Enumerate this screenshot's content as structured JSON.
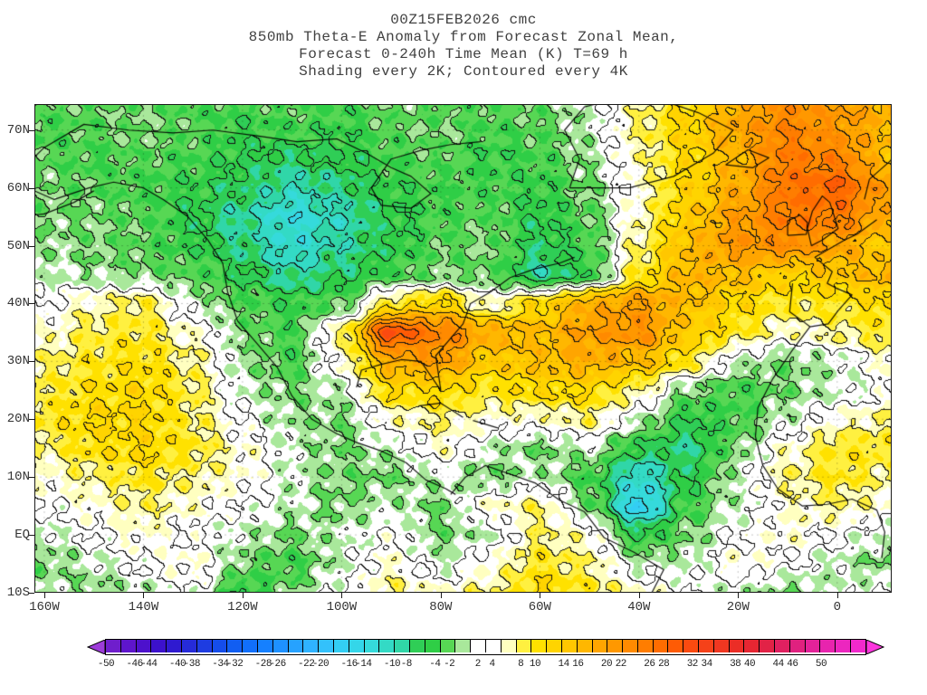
{
  "title": {
    "line1": "00Z15FEB2026 cmc",
    "line2": "850mb Theta-E Anomaly from Forecast Zonal Mean,",
    "line3": "Forecast 0-240h Time Mean (K) T=69 h",
    "line4": "Shading every 2K; Contoured every 4K"
  },
  "axes": {
    "y_ticks": [
      {
        "label": "70N",
        "lat": 70
      },
      {
        "label": "60N",
        "lat": 60
      },
      {
        "label": "50N",
        "lat": 50
      },
      {
        "label": "40N",
        "lat": 40
      },
      {
        "label": "30N",
        "lat": 30
      },
      {
        "label": "20N",
        "lat": 20
      },
      {
        "label": "10N",
        "lat": 10
      },
      {
        "label": "EQ",
        "lat": 0
      },
      {
        "label": "10S",
        "lat": -10
      }
    ],
    "x_ticks": [
      {
        "label": "160W",
        "lon": -160
      },
      {
        "label": "140W",
        "lon": -140
      },
      {
        "label": "120W",
        "lon": -120
      },
      {
        "label": "100W",
        "lon": -100
      },
      {
        "label": "80W",
        "lon": -80
      },
      {
        "label": "60W",
        "lon": -60
      },
      {
        "label": "40W",
        "lon": -40
      },
      {
        "label": "20W",
        "lon": -20
      },
      {
        "label": "0",
        "lon": 0
      }
    ]
  },
  "colorbar": {
    "min": -50,
    "max": 50,
    "step": 2,
    "labels": [
      "-50",
      "-46",
      "-44",
      "-40",
      "-38",
      "-34",
      "-32",
      "-28",
      "-26",
      "-22",
      "-20",
      "-16",
      "-14",
      "-10",
      "-8",
      "-4",
      "-2",
      "2",
      "4",
      "8",
      "10",
      "14",
      "16",
      "20",
      "22",
      "26",
      "28",
      "32",
      "34",
      "38",
      "40",
      "44",
      "46",
      "50"
    ]
  },
  "chart_data": {
    "type": "heatmap",
    "model_run": "00Z15FEB2026 cmc",
    "title": "850mb Theta-E Anomaly from Forecast Zonal Mean, Forecast 0-240h Time Mean (K) T=69 h",
    "shading_note": "Shading every 2K; Contoured every 4K",
    "units": "K",
    "shading_interval_K": 2,
    "contour_interval_K": 4,
    "lon_range": [
      -162,
      11
    ],
    "lat_range": [
      -10,
      74.5
    ],
    "grid_lons": [
      -160,
      -150,
      -140,
      -130,
      -120,
      -110,
      -100,
      -90,
      -80,
      -70,
      -60,
      -50,
      -40,
      -30,
      -20,
      -10,
      0,
      10
    ],
    "grid_lats": [
      75,
      70,
      65,
      60,
      55,
      50,
      45,
      40,
      35,
      30,
      25,
      20,
      15,
      10,
      5,
      0,
      -5,
      -10
    ],
    "values": [
      [
        -5,
        -5,
        -4,
        -6,
        -6,
        -5,
        -6,
        -4,
        -6,
        -5,
        -4,
        -2,
        3,
        8,
        14,
        18,
        16,
        14
      ],
      [
        -6,
        -5,
        -4,
        -5,
        -7,
        -6,
        -7,
        -5,
        -4,
        -6,
        -5,
        -2,
        4,
        9,
        15,
        20,
        17,
        13
      ],
      [
        -5,
        -6,
        -5,
        -6,
        -8,
        -9,
        -8,
        -6,
        -5,
        -7,
        -6,
        -3,
        3,
        8,
        13,
        21,
        20,
        12
      ],
      [
        -4,
        -5,
        -6,
        -7,
        -9,
        -12,
        -10,
        -7,
        -6,
        -6,
        -7,
        -4,
        2,
        9,
        14,
        22,
        24,
        16
      ],
      [
        -4,
        -4,
        -5,
        -8,
        -11,
        -15,
        -12,
        -8,
        -6,
        -5,
        -8,
        -5,
        3,
        10,
        16,
        21,
        21,
        14
      ],
      [
        -3,
        -4,
        -5,
        -7,
        -10,
        -14,
        -11,
        -8,
        -5,
        -4,
        -9,
        -6,
        4,
        12,
        17,
        18,
        15,
        10
      ],
      [
        -2,
        -3,
        -4,
        -5,
        -8,
        -11,
        -9,
        -6,
        -4,
        -5,
        -11,
        -7,
        6,
        13,
        12,
        9,
        11,
        13
      ],
      [
        0,
        3,
        5,
        -2,
        -5,
        -7,
        -5,
        6,
        9,
        2,
        8,
        14,
        16,
        12,
        8,
        6,
        6,
        8
      ],
      [
        2,
        5,
        6,
        2,
        -4,
        -6,
        4,
        26,
        20,
        14,
        12,
        16,
        18,
        10,
        6,
        2,
        4,
        6
      ],
      [
        4,
        6,
        7,
        4,
        -3,
        -6,
        2,
        14,
        16,
        10,
        12,
        14,
        12,
        6,
        -2,
        -4,
        -2,
        2
      ],
      [
        5,
        7,
        8,
        5,
        -2,
        -4,
        -2,
        8,
        8,
        6,
        8,
        8,
        4,
        -4,
        -6,
        -4,
        -2,
        0
      ],
      [
        6,
        8,
        8,
        5,
        0,
        -3,
        -4,
        2,
        4,
        2,
        2,
        4,
        -2,
        -8,
        -6,
        -2,
        2,
        4
      ],
      [
        4,
        7,
        8,
        6,
        2,
        -2,
        -4,
        -2,
        2,
        -2,
        -4,
        -2,
        -8,
        -10,
        -4,
        2,
        6,
        6
      ],
      [
        2,
        4,
        6,
        4,
        2,
        -2,
        -4,
        -4,
        -2,
        -4,
        -2,
        -6,
        -14,
        -8,
        -2,
        4,
        6,
        4
      ],
      [
        0,
        2,
        4,
        2,
        0,
        -2,
        -4,
        -2,
        -4,
        2,
        4,
        -4,
        -18,
        -6,
        -2,
        2,
        4,
        2
      ],
      [
        -2,
        0,
        2,
        0,
        -2,
        -4,
        -2,
        0,
        -4,
        -2,
        4,
        2,
        -8,
        -4,
        0,
        2,
        0,
        -2
      ],
      [
        -4,
        -2,
        0,
        2,
        -4,
        -6,
        -2,
        2,
        -2,
        2,
        6,
        4,
        -2,
        -2,
        2,
        0,
        -2,
        -4
      ],
      [
        -2,
        -4,
        -2,
        0,
        -8,
        -4,
        0,
        4,
        2,
        4,
        8,
        6,
        2,
        0,
        -2,
        -4,
        -2,
        0
      ]
    ],
    "color_stops": [
      [
        -54,
        "#aa44dd"
      ],
      [
        -50,
        "#7722cc"
      ],
      [
        -46,
        "#5511cc"
      ],
      [
        -42,
        "#3311cc"
      ],
      [
        -38,
        "#2233dd"
      ],
      [
        -34,
        "#1155ee"
      ],
      [
        -30,
        "#1177ff"
      ],
      [
        -26,
        "#2299ff"
      ],
      [
        -22,
        "#33bbff"
      ],
      [
        -18,
        "#33d4f0"
      ],
      [
        -14,
        "#35dcd4"
      ],
      [
        -11,
        "#30d6a8"
      ],
      [
        -9,
        "#2fce56"
      ],
      [
        -6,
        "#2fce3e"
      ],
      [
        -4,
        "#7fdf6a"
      ],
      [
        -3,
        "#a9e89b"
      ],
      [
        -2,
        "#ffffff"
      ],
      [
        2,
        "#ffffff"
      ],
      [
        3,
        "#ffffc0"
      ],
      [
        4,
        "#fff780"
      ],
      [
        6,
        "#ffe800"
      ],
      [
        9,
        "#ffd400"
      ],
      [
        12,
        "#ffc000"
      ],
      [
        15,
        "#ffa500"
      ],
      [
        18,
        "#ff9100"
      ],
      [
        21,
        "#ff7d00"
      ],
      [
        24,
        "#ff6400"
      ],
      [
        27,
        "#fb4a10"
      ],
      [
        30,
        "#f23c1e"
      ],
      [
        34,
        "#e82828"
      ],
      [
        38,
        "#e02050"
      ],
      [
        42,
        "#e0218e"
      ],
      [
        46,
        "#ea25b8"
      ],
      [
        50,
        "#f32ad2"
      ],
      [
        54,
        "#ff3ae0"
      ]
    ],
    "coastlines": [
      [
        [
          -166,
          61
        ],
        [
          -158,
          58
        ],
        [
          -151,
          60
        ],
        [
          -146,
          61
        ],
        [
          -140,
          60
        ],
        [
          -136,
          58
        ],
        [
          -131,
          55
        ],
        [
          -127,
          51
        ],
        [
          -124,
          47
        ],
        [
          -123,
          42
        ],
        [
          -121,
          37
        ],
        [
          -117,
          33
        ],
        [
          -113,
          29
        ],
        [
          -110,
          24
        ],
        [
          -106,
          20
        ],
        [
          -101,
          17.5
        ],
        [
          -97,
          16
        ],
        [
          -92,
          14.5
        ],
        [
          -87,
          12.5
        ],
        [
          -83,
          9.5
        ],
        [
          -79,
          8
        ],
        [
          -77,
          7
        ]
      ],
      [
        [
          -97,
          25.5
        ],
        [
          -96,
          28.5
        ],
        [
          -92,
          29.5
        ],
        [
          -88,
          30.3
        ],
        [
          -84,
          30
        ],
        [
          -82,
          27.5
        ],
        [
          -80,
          25
        ],
        [
          -80.5,
          28
        ],
        [
          -81,
          31
        ],
        [
          -78,
          34
        ],
        [
          -75.5,
          36.5
        ],
        [
          -74,
          40
        ],
        [
          -70,
          42
        ],
        [
          -66,
          44.5
        ],
        [
          -61,
          46
        ],
        [
          -56,
          47
        ],
        [
          -53,
          48
        ]
      ],
      [
        [
          -166,
          62
        ],
        [
          -160,
          67
        ],
        [
          -152,
          71
        ],
        [
          -143,
          70
        ],
        [
          -134,
          69.5
        ],
        [
          -126,
          70
        ],
        [
          -117,
          69
        ],
        [
          -109,
          68
        ],
        [
          -101,
          68.5
        ],
        [
          -95,
          66
        ],
        [
          -90,
          63.5
        ],
        [
          -86,
          62
        ],
        [
          -82,
          59
        ],
        [
          -86,
          56.5
        ],
        [
          -92,
          57
        ],
        [
          -94,
          60
        ],
        [
          -90,
          65
        ],
        [
          -84,
          66.5
        ],
        [
          -78,
          67.5
        ],
        [
          -72,
          68
        ]
      ],
      [
        [
          -54,
          60
        ],
        [
          -52,
          65
        ],
        [
          -55,
          70
        ],
        [
          -51,
          74
        ],
        [
          -40,
          76.5
        ],
        [
          -28,
          73
        ],
        [
          -21,
          70
        ],
        [
          -25,
          66
        ],
        [
          -33,
          62
        ],
        [
          -42,
          60
        ],
        [
          -54,
          60
        ]
      ],
      [
        [
          -78,
          7
        ],
        [
          -75,
          10
        ],
        [
          -71,
          12
        ],
        [
          -66,
          10.5
        ],
        [
          -61,
          9
        ],
        [
          -56,
          6
        ],
        [
          -51,
          4
        ],
        [
          -47,
          -0.5
        ],
        [
          -41,
          -3
        ],
        [
          -35,
          -6
        ],
        [
          -38,
          -11
        ]
      ],
      [
        [
          -5.5,
          36
        ],
        [
          -9,
          32
        ],
        [
          -13,
          27
        ],
        [
          -16,
          22
        ],
        [
          -16.5,
          17
        ],
        [
          -15,
          12
        ],
        [
          -12,
          8
        ],
        [
          -7,
          5
        ],
        [
          -2,
          5.3
        ],
        [
          3,
          6.2
        ],
        [
          8,
          4.3
        ],
        [
          9.6,
          0.5
        ],
        [
          9,
          -4
        ]
      ],
      [
        [
          -9,
          43.5
        ],
        [
          -9.6,
          38.6
        ],
        [
          -7,
          37
        ],
        [
          -5.5,
          36
        ],
        [
          -1.8,
          36.5
        ],
        [
          0.2,
          38.8
        ],
        [
          3,
          41.5
        ],
        [
          -0.5,
          42.8
        ],
        [
          -2,
          43.5
        ],
        [
          -1,
          45.5
        ],
        [
          -4.5,
          48
        ],
        [
          -1.5,
          49.5
        ],
        [
          1.5,
          51
        ],
        [
          4,
          52
        ],
        [
          8,
          54.5
        ]
      ],
      [
        [
          -5.2,
          50
        ],
        [
          -6,
          53
        ],
        [
          -5,
          56
        ],
        [
          -3,
          58.6
        ],
        [
          -1.5,
          57.5
        ],
        [
          0.2,
          53
        ],
        [
          -3,
          51
        ],
        [
          -5.2,
          50
        ]
      ],
      [
        [
          -10,
          51.8
        ],
        [
          -10,
          54.3
        ],
        [
          -7.5,
          55.3
        ],
        [
          -6,
          54
        ],
        [
          -6.2,
          52
        ],
        [
          -10,
          51.8
        ]
      ],
      [
        [
          -22.5,
          64
        ],
        [
          -18,
          66.6
        ],
        [
          -13.8,
          65.2
        ],
        [
          -17,
          63.5
        ],
        [
          -22.5,
          64
        ]
      ],
      [
        [
          5.5,
          58
        ],
        [
          6.5,
          61.5
        ],
        [
          10.5,
          64.5
        ],
        [
          14,
          67.5
        ]
      ],
      [
        [
          -84.5,
          22.3
        ],
        [
          -80,
          22.8
        ],
        [
          -75.5,
          20.3
        ]
      ],
      [
        [
          -73.5,
          19.8
        ],
        [
          -68.5,
          18.5
        ]
      ],
      [
        [
          -166,
          55
        ],
        [
          -160,
          55.5
        ],
        [
          -154,
          57.5
        ],
        [
          -150,
          59.5
        ]
      ]
    ]
  }
}
